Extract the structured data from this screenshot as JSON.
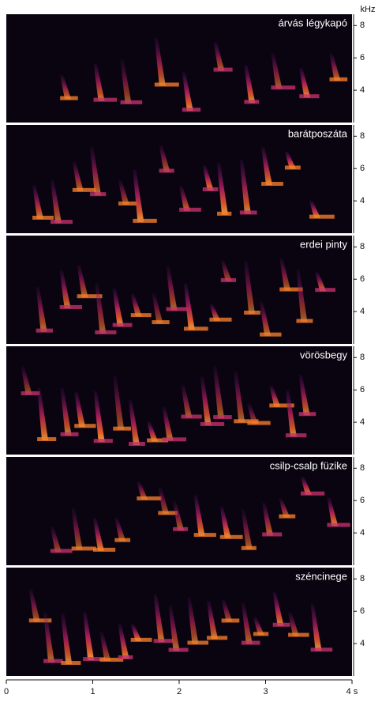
{
  "chart_data": {
    "type": "spectrogram",
    "ylabel": "kHz",
    "panels": [
      {
        "title": "árvás légykapó"
      },
      {
        "title": "barátposzáta"
      },
      {
        "title": "erdei pinty"
      },
      {
        "title": "vörösbegy"
      },
      {
        "title": "csilp-csalp füzike"
      },
      {
        "title": "széncinege"
      }
    ],
    "xlim": [
      0,
      4
    ],
    "xticks": [
      0,
      1,
      2,
      3,
      {
        "value": 4,
        "label": "4 s"
      }
    ],
    "ylim": [
      2,
      8.7
    ],
    "yticks": [
      4,
      6,
      8
    ]
  }
}
